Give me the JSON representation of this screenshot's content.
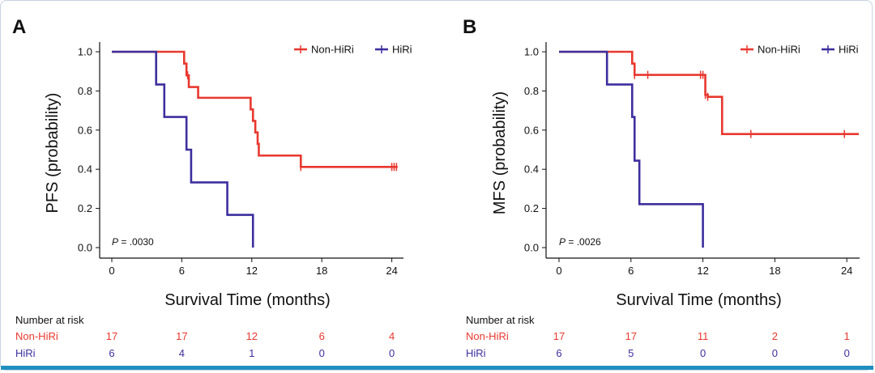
{
  "colors": {
    "non_hiri": "#e8382f",
    "hiri": "#3d2f9e",
    "axis": "#111111",
    "accent_bar": "#1f8fbf"
  },
  "chart_data": [
    {
      "panel": "A",
      "type": "line",
      "ylabel": "PFS (probability)",
      "xlabel": "Survival Time (months)",
      "pvalue_prefix": "P",
      "pvalue_text": " = .0030",
      "xticks": [
        0,
        6,
        12,
        18,
        24
      ],
      "xtick_labels": [
        "0",
        "6",
        "12",
        "18",
        "24"
      ],
      "yticks": [
        0.0,
        0.2,
        0.4,
        0.6,
        0.8,
        1.0
      ],
      "ytick_labels": [
        "0.0",
        "0.2",
        "0.4",
        "0.6",
        "0.8",
        "1.0"
      ],
      "xlim": [
        0,
        25
      ],
      "ylim": [
        0,
        1
      ],
      "legend_placement": "top-right",
      "series": [
        {
          "name": "Non-HiRi",
          "color_key": "non_hiri",
          "steps": [
            [
              0,
              1.0
            ],
            [
              6.2,
              0.94
            ],
            [
              6.4,
              0.88
            ],
            [
              6.6,
              0.82
            ],
            [
              7.4,
              0.765
            ],
            [
              11.9,
              0.706
            ],
            [
              12.1,
              0.647
            ],
            [
              12.3,
              0.588
            ],
            [
              12.5,
              0.53
            ],
            [
              12.6,
              0.47
            ],
            [
              16.2,
              0.412
            ]
          ],
          "end_x": 24.5,
          "censor_x": [
            6.5,
            16.2,
            24.0,
            24.2,
            24.4
          ]
        },
        {
          "name": "HiRi",
          "color_key": "hiri",
          "steps": [
            [
              0,
              1.0
            ],
            [
              3.8,
              0.833
            ],
            [
              4.5,
              0.667
            ],
            [
              6.4,
              0.5
            ],
            [
              6.8,
              0.333
            ],
            [
              9.9,
              0.167
            ],
            [
              12.1,
              0.0
            ]
          ],
          "end_x": 12.1,
          "censor_x": []
        }
      ],
      "risk_table": {
        "title": "Number at risk",
        "rows": [
          {
            "label": "Non-HiRi",
            "color_key": "non_hiri",
            "values": [
              "17",
              "17",
              "12",
              "6",
              "4"
            ]
          },
          {
            "label": "HiRi",
            "color_key": "hiri",
            "values": [
              "6",
              "4",
              "1",
              "0",
              "0"
            ]
          }
        ]
      }
    },
    {
      "panel": "B",
      "type": "line",
      "ylabel": "MFS (probability)",
      "xlabel": "Survival Time (months)",
      "pvalue_prefix": "P",
      "pvalue_text": " = .0026",
      "xticks": [
        0,
        6,
        12,
        18,
        24
      ],
      "xtick_labels": [
        "0",
        "6",
        "12",
        "18",
        "24"
      ],
      "yticks": [
        0.0,
        0.2,
        0.4,
        0.6,
        0.8,
        1.0
      ],
      "ytick_labels": [
        "0.0",
        "0.2",
        "0.4",
        "0.6",
        "0.8",
        "1.0"
      ],
      "xlim": [
        0,
        25
      ],
      "ylim": [
        0,
        1
      ],
      "legend_placement": "top-right",
      "series": [
        {
          "name": "Non-HiRi",
          "color_key": "non_hiri",
          "steps": [
            [
              0,
              1.0
            ],
            [
              6.1,
              0.94
            ],
            [
              6.3,
              0.882
            ],
            [
              12.2,
              0.78
            ],
            [
              12.4,
              0.77
            ],
            [
              13.6,
              0.58
            ]
          ],
          "end_x": 25,
          "censor_x": [
            6.3,
            7.4,
            11.8,
            12.0,
            12.2,
            12.4,
            16.0,
            23.8
          ]
        },
        {
          "name": "HiRi",
          "color_key": "hiri",
          "steps": [
            [
              0,
              1.0
            ],
            [
              4.0,
              0.833
            ],
            [
              6.1,
              0.667
            ],
            [
              6.3,
              0.444
            ],
            [
              6.7,
              0.222
            ],
            [
              12.0,
              0.0
            ]
          ],
          "end_x": 12.0,
          "censor_x": []
        }
      ],
      "risk_table": {
        "title": "Number at risk",
        "rows": [
          {
            "label": "Non-HiRi",
            "color_key": "non_hiri",
            "values": [
              "17",
              "17",
              "11",
              "2",
              "1"
            ]
          },
          {
            "label": "HiRi",
            "color_key": "hiri",
            "values": [
              "6",
              "5",
              "0",
              "0",
              "0"
            ]
          }
        ]
      }
    }
  ]
}
